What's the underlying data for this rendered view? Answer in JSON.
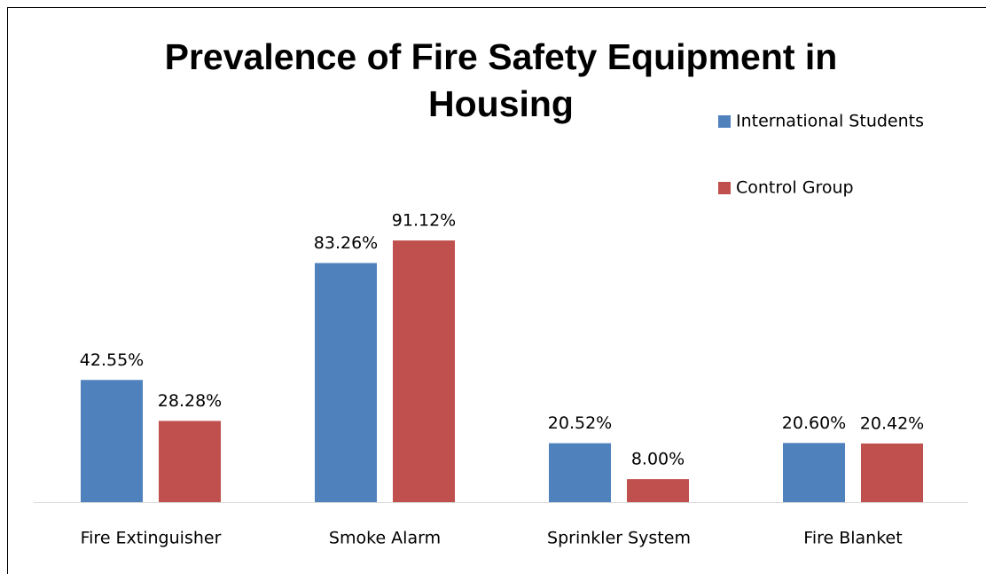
{
  "chart_data": {
    "type": "bar",
    "title": "Prevalence of Fire Safety Equipment in Housing",
    "categories": [
      "Fire Extinguisher",
      "Smoke Alarm",
      "Sprinkler System",
      "Fire Blanket"
    ],
    "series": [
      {
        "name": "International Students",
        "color": "#4f81bd",
        "values": [
          42.55,
          83.26,
          20.52,
          20.6
        ],
        "value_labels": [
          "42.55%",
          "83.26%",
          "20.52%",
          "20.60%"
        ]
      },
      {
        "name": "Control Group",
        "color": "#c0504d",
        "values": [
          28.28,
          91.12,
          8.0,
          20.42
        ],
        "value_labels": [
          "28.28%",
          "91.12%",
          "8.00%",
          "20.42%"
        ]
      }
    ],
    "legend": "right"
  }
}
